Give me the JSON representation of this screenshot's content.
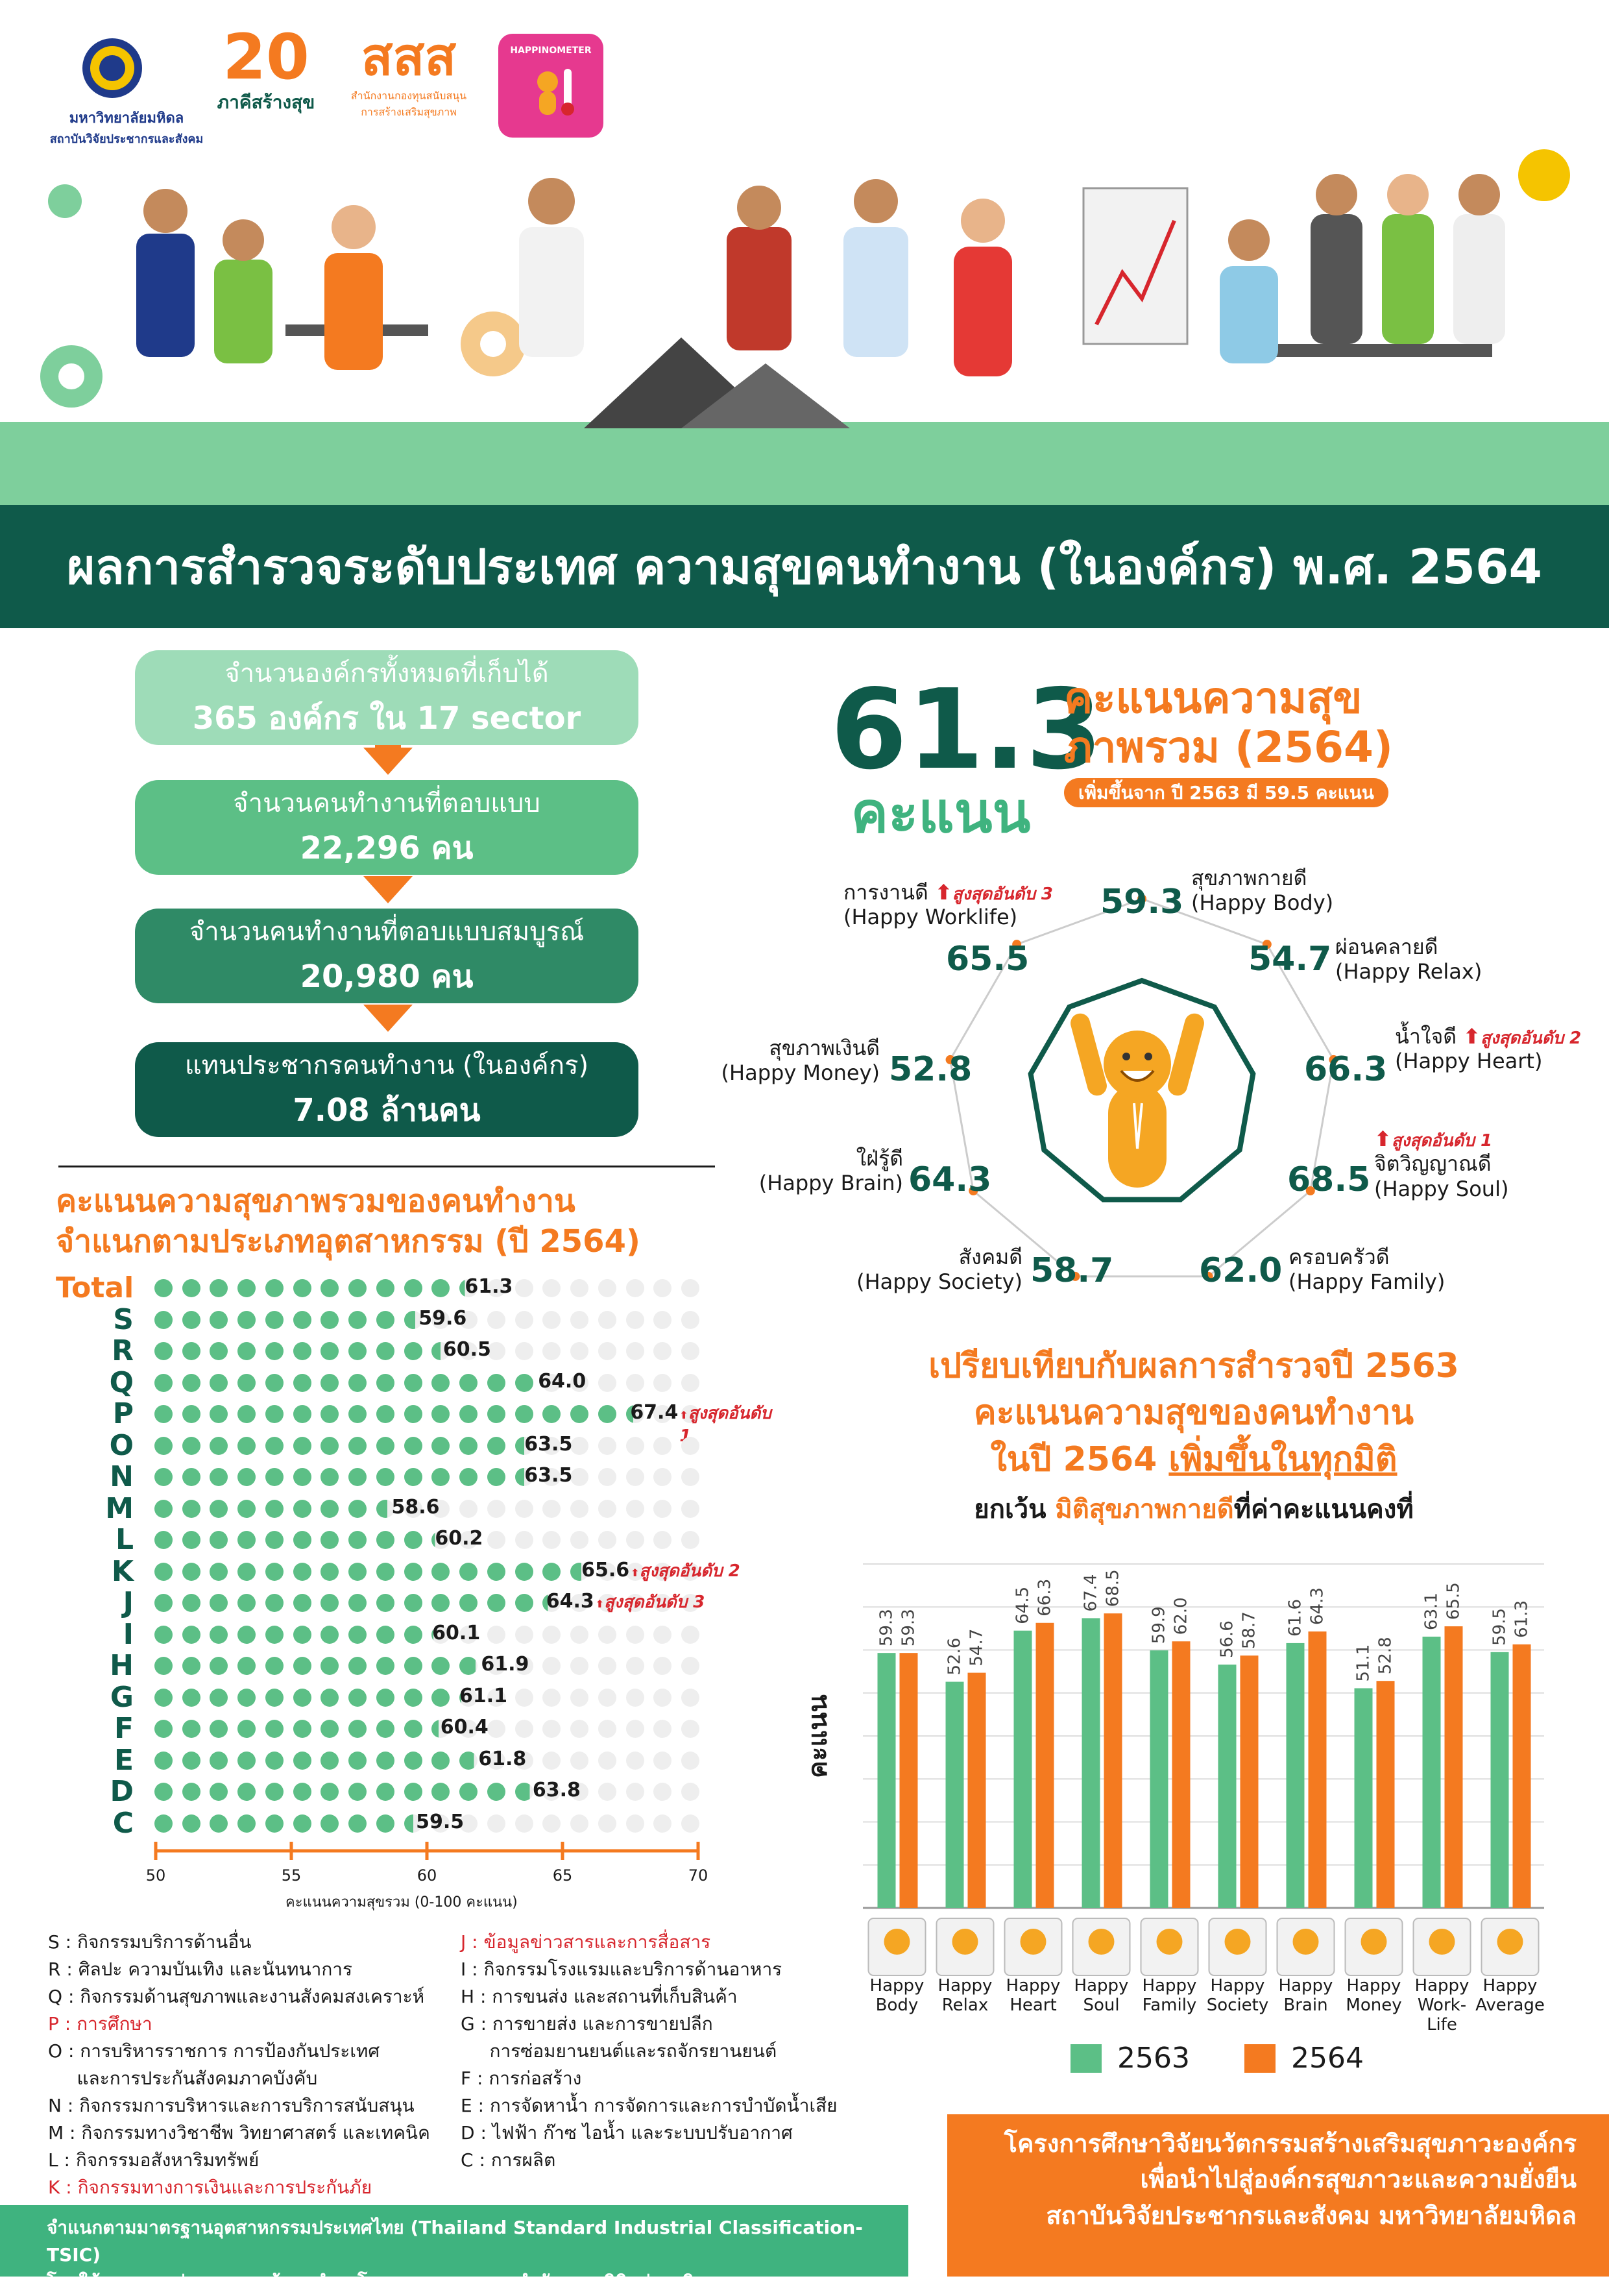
{
  "header": {
    "logo_mahidol_line1": "มหาวิทยาลัยมหิดล",
    "logo_mahidol_line2": "สถาบันวิจัยประชากรและสังคม",
    "logo_20_number": "20",
    "logo_20_text": "ภาคีสร้างสุข",
    "logo_sss_text": "สสส",
    "logo_sss_sub1": "สำนักงานกองทุนสนับสนุน",
    "logo_sss_sub2": "การสร้างเสริมสุขภาพ",
    "logo_happinometer": "HAPPINOMETER",
    "title": "ผลการสำรวจระดับประเทศ ความสุขคนทำงาน (ในองค์กร) พ.ศ. 2564"
  },
  "flow": [
    {
      "line1": "จำนวนองค์กรทั้งหมดที่เก็บได้",
      "line2": "365 องค์กร ใน 17 sector"
    },
    {
      "line1": "จำนวนคนทำงานที่ตอบแบบ",
      "line2": "22,296 คน"
    },
    {
      "line1": "จำนวนคนทำงานที่ตอบแบบสมบูรณ์",
      "line2": "20,980 คน"
    },
    {
      "line1": "แทนประชากรคนทำงาน (ในองค์กร)",
      "line2": "7.08 ล้านคน"
    }
  ],
  "overall": {
    "score": "61.3",
    "unit": "คะแนน",
    "title_line1": "คะแนนความสุข",
    "title_line2": "ภาพรวม (2564)",
    "note": "เพิ่มขึ้นจาก ปี 2563 มี 59.5 คะแนน"
  },
  "radar": [
    {
      "name": "สุขภาพกายดี",
      "en": "(Happy Body)",
      "value": 59.3,
      "rank": ""
    },
    {
      "name": "ผ่อนคลายดี",
      "en": "(Happy Relax)",
      "value": 54.7,
      "rank": ""
    },
    {
      "name": "น้ำใจดี",
      "en": "(Happy Heart)",
      "value": 66.3,
      "rank": "สูงสุดอันดับ 2"
    },
    {
      "name": "จิตวิญญาณดี",
      "en": "(Happy Soul)",
      "value": 68.5,
      "rank": "สูงสุดอันดับ 1"
    },
    {
      "name": "ครอบครัวดี",
      "en": "(Happy Family)",
      "value": 62.0,
      "rank": ""
    },
    {
      "name": "สังคมดี",
      "en": "(Happy Society)",
      "value": 58.7,
      "rank": ""
    },
    {
      "name": "ใฝ่รู้ดี",
      "en": "(Happy Brain)",
      "value": 64.3,
      "rank": ""
    },
    {
      "name": "สุขภาพเงินดี",
      "en": "(Happy Money)",
      "value": 52.8,
      "rank": ""
    },
    {
      "name": "การงานดี",
      "en": "(Happy Worklife)",
      "value": 65.5,
      "rank": "สูงสุดอันดับ 3"
    }
  ],
  "industry": {
    "title_line1": "คะแนนความสุขภาพรวมของคนทำงาน",
    "title_line2": "จำแนกตามประเภทอุตสาหกรรม (ปี 2564)",
    "axis_label": "คะแนนความสุขรวม (0-100 คะแนน)"
  },
  "chart_data": [
    {
      "type": "bar",
      "categories": [
        "Total",
        "S",
        "R",
        "Q",
        "P",
        "O",
        "N",
        "M",
        "L",
        "K",
        "J",
        "I",
        "H",
        "G",
        "F",
        "E",
        "D",
        "C"
      ],
      "values": [
        61.3,
        59.6,
        60.5,
        64.0,
        67.4,
        63.5,
        63.5,
        58.6,
        60.2,
        65.6,
        64.3,
        60.1,
        61.9,
        61.1,
        60.4,
        61.8,
        63.8,
        59.5
      ],
      "value_labels": [
        "61.3",
        "59.6",
        "60.5",
        "64.0",
        "67.4",
        "63.5",
        "63.5",
        "58.6",
        "60.2",
        "65.6",
        "64.3",
        "60.1",
        "61.9",
        "61.1",
        "60.4",
        "61.8",
        "63.8",
        "59.5"
      ],
      "ranks": {
        "P": "สูงสุดอันดับ 1",
        "K": "สูงสุดอันดับ 2",
        "J": "สูงสุดอันดับ 3"
      },
      "xlim": [
        50,
        70
      ],
      "xticks": [
        "50",
        "55",
        "60",
        "65",
        "70"
      ],
      "title": "คะแนนความสุขภาพรวมของคนทำงาน จำแนกตามประเภทอุตสาหกรรม (ปี 2564)",
      "xlabel": "คะแนนความสุขรวม (0-100 คะแนน)"
    },
    {
      "type": "bar",
      "categories": [
        "Happy Body",
        "Happy Relax",
        "Happy Heart",
        "Happy Soul",
        "Happy Family",
        "Happy Society",
        "Happy Brain",
        "Happy Money",
        "Happy Work-Life",
        "Happy Average"
      ],
      "series": [
        {
          "name": "2563",
          "values": [
            59.3,
            52.6,
            64.5,
            67.4,
            59.9,
            56.6,
            61.6,
            51.1,
            63.1,
            59.5
          ],
          "labels": [
            "59.3",
            "52.6",
            "64.5",
            "67.4",
            "59.9",
            "56.6",
            "61.6",
            "51.1",
            "63.1",
            "59.5"
          ]
        },
        {
          "name": "2564",
          "values": [
            59.3,
            54.7,
            66.3,
            68.5,
            62.0,
            58.7,
            64.3,
            52.8,
            65.5,
            61.3
          ],
          "labels": [
            "59.3",
            "54.7",
            "66.3",
            "68.5",
            "62.0",
            "58.7",
            "64.3",
            "52.8",
            "65.5",
            "61.3"
          ]
        }
      ],
      "ylabel": "คะแนน",
      "ylim": [
        0,
        80
      ],
      "grid": true,
      "legend": "bottom"
    }
  ],
  "comparison": {
    "title_line1": "เปรียบเทียบกับผลการสำรวจปี 2563",
    "title_line2": "คะแนนความสุขของคนทำงาน",
    "title_line3_a": "ในปี 2564 ",
    "title_line3_b": "เพิ่มขึ้นในทุกมิติ",
    "sub_a": "ยกเว้น ",
    "sub_b": "มิติสุขภาพกายดี",
    "sub_c": "ที่ค่าคะแนนคงที่",
    "cat_labels": [
      [
        "Happy",
        "Body"
      ],
      [
        "Happy",
        "Relax"
      ],
      [
        "Happy",
        "Heart"
      ],
      [
        "Happy",
        "Soul"
      ],
      [
        "Happy",
        "Family"
      ],
      [
        "Happy",
        "Society"
      ],
      [
        "Happy",
        "Brain"
      ],
      [
        "Happy",
        "Money"
      ],
      [
        "Happy",
        "Work-Life"
      ],
      [
        "Happy",
        "Average"
      ]
    ],
    "legend_2563": "2563",
    "legend_2564": "2564"
  },
  "legend_left": [
    {
      "text": "S : กิจกรรมบริการด้านอื่น",
      "red": false
    },
    {
      "text": "R : ศิลปะ ความบันเทิง และนันทนาการ",
      "red": false
    },
    {
      "text": "Q : กิจกรรมด้านสุขภาพและงานสังคมสงเคราะห์",
      "red": false
    },
    {
      "text": "P : การศึกษา",
      "red": true
    },
    {
      "text": "O : การบริหารราชการ การป้องกันประเทศ",
      "red": false
    },
    {
      "text": "     และการประกันสังคมภาคบังคับ",
      "red": false
    },
    {
      "text": "N : กิจกรรมการบริหารและการบริการสนับสนุน",
      "red": false
    },
    {
      "text": "M : กิจกรรมทางวิชาชีพ วิทยาศาสตร์ และเทคนิค",
      "red": false
    },
    {
      "text": "L : กิจกรรมอสังหาริมทรัพย์",
      "red": false
    },
    {
      "text": "K : กิจกรรมทางการเงินและการประกันภัย",
      "red": true
    }
  ],
  "legend_right": [
    {
      "text": "J : ข้อมูลข่าวสารและการสื่อสาร",
      "red": true
    },
    {
      "text": "I : กิจกรรมโรงแรมและบริการด้านอาหาร",
      "red": false
    },
    {
      "text": "H : การขนส่ง และสถานที่เก็บสินค้า",
      "red": false
    },
    {
      "text": "G : การขายส่ง และการขายปลีก",
      "red": false
    },
    {
      "text": "     การซ่อมยานยนต์และรถจักรยานยนต์",
      "red": false
    },
    {
      "text": "F : การก่อสร้าง",
      "red": false
    },
    {
      "text": "E : การจัดหาน้ำ การจัดการและการบำบัดน้ำเสีย",
      "red": false
    },
    {
      "text": "D : ไฟฟ้า ก๊าซ ไอน้ำ และระบบปรับอากาศ",
      "red": false
    },
    {
      "text": "C : การผลิต",
      "red": false
    }
  ],
  "footer": {
    "green_line1": "จำแนกตามมาตรฐานอุตสาหกรรมประเทศไทย (Thailand Standard Industrial Classification-TSIC)",
    "green_line2": "โดยใช้กรอบการสุ่ม จากฐานข้อมูลสำมะโนอุตสาหกรรม  ของสำนักงานสถิติแห่งชาติ",
    "orange_line1": "โครงการศึกษาวิจัยนวัตกรรมสร้างเสริมสุขภาวะองค์กร",
    "orange_line2": "เพื่อนำไปสู่องค์กรสุขภาวะและความยั่งยืน",
    "orange_line3": "สถาบันวิจัยประชากรและสังคม มหาวิทยาลัยมหิดล"
  },
  "colors": {
    "dark_green": "#0f5a4a",
    "green": "#3fb37f",
    "light_green": "#9edcb8",
    "orange": "#f47a20",
    "red": "#d7262d",
    "bar_2563": "#5cbf86",
    "bar_2564": "#f47a20"
  }
}
